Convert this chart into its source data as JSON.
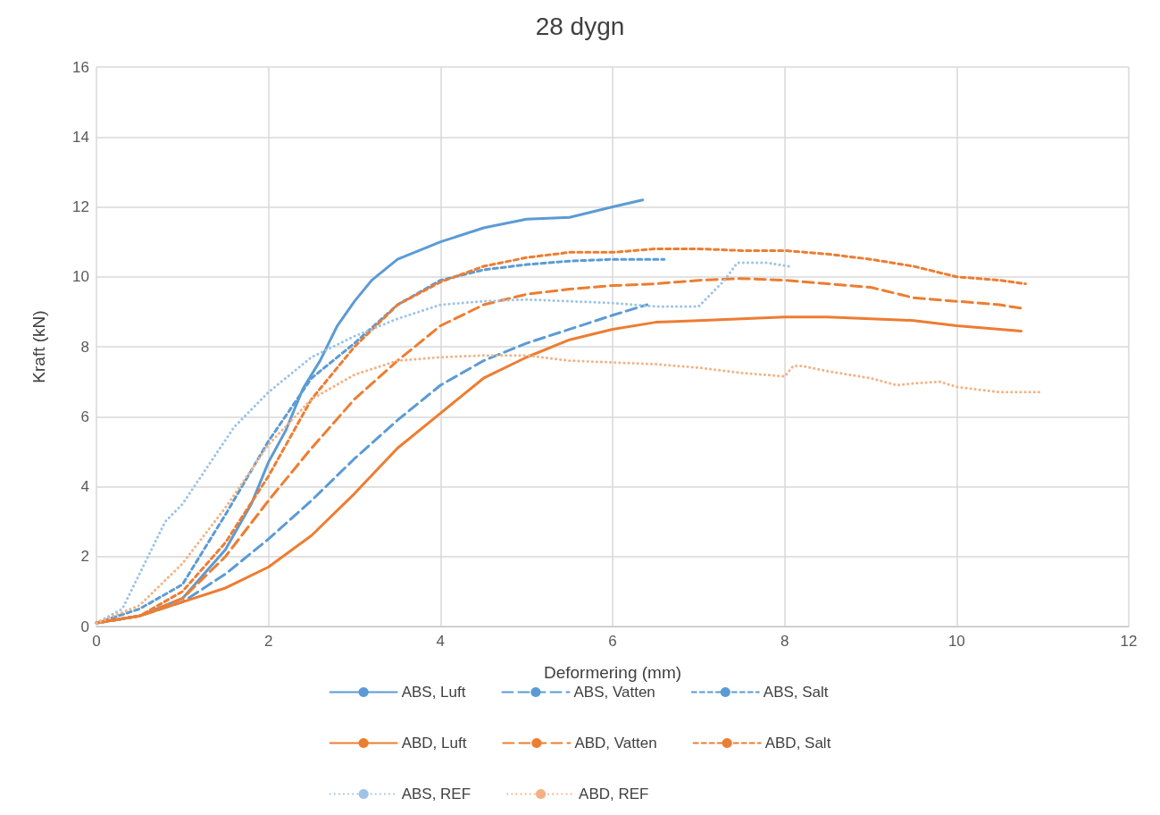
{
  "chart_data": {
    "type": "line",
    "title": "28 dygn",
    "xlabel": "Deformering (mm)",
    "ylabel": "Kraft (kN)",
    "xlim": [
      0,
      12
    ],
    "xticks": [
      0,
      2,
      4,
      6,
      8,
      10,
      12
    ],
    "ylim": [
      0,
      16
    ],
    "yticks": [
      0,
      2,
      4,
      6,
      8,
      10,
      12,
      14,
      16
    ],
    "grid": true,
    "legend": "bottom",
    "marker": "none",
    "series": [
      {
        "name": "ABS, Luft",
        "color": "#5b9bd5",
        "line_style": "solid",
        "x": [
          0,
          0.5,
          1,
          1.5,
          1.8,
          2,
          2.2,
          2.4,
          2.6,
          2.8,
          3,
          3.2,
          3.5,
          4,
          4.5,
          5,
          5.5,
          6,
          6.35
        ],
        "values": [
          0.1,
          0.3,
          0.8,
          2.2,
          3.5,
          4.7,
          5.6,
          6.8,
          7.6,
          8.6,
          9.3,
          9.9,
          10.5,
          11,
          11.4,
          11.65,
          11.7,
          12,
          12.2
        ]
      },
      {
        "name": "ABS, Vatten",
        "color": "#5b9bd5",
        "line_style": "long_dashed",
        "x": [
          0,
          0.5,
          1,
          1.5,
          2,
          2.5,
          3,
          3.5,
          4,
          4.5,
          5,
          5.5,
          6,
          6.4
        ],
        "values": [
          0.1,
          0.3,
          0.7,
          1.5,
          2.5,
          3.6,
          4.8,
          5.9,
          6.9,
          7.6,
          8.1,
          8.5,
          8.9,
          9.2
        ]
      },
      {
        "name": "ABS, Salt",
        "color": "#5b9bd5",
        "line_style": "dashed",
        "x": [
          0,
          0.5,
          1,
          1.5,
          2,
          2.5,
          3,
          3.5,
          4,
          4.5,
          5,
          5.5,
          6,
          6.6
        ],
        "values": [
          0.1,
          0.5,
          1.2,
          3.2,
          5.3,
          7.1,
          8.1,
          9.2,
          9.9,
          10.2,
          10.35,
          10.45,
          10.5,
          10.5
        ]
      },
      {
        "name": "ABD, Luft",
        "color": "#ed7d31",
        "line_style": "solid",
        "x": [
          0,
          0.5,
          1,
          1.5,
          2,
          2.5,
          3,
          3.5,
          4,
          4.5,
          5,
          5.5,
          6,
          6.5,
          7,
          7.5,
          8,
          8.5,
          9,
          9.5,
          10,
          10.5,
          10.75
        ],
        "values": [
          0.1,
          0.3,
          0.7,
          1.1,
          1.7,
          2.6,
          3.8,
          5.1,
          6.1,
          7.1,
          7.7,
          8.2,
          8.5,
          8.7,
          8.75,
          8.8,
          8.85,
          8.85,
          8.8,
          8.75,
          8.6,
          8.5,
          8.45
        ]
      },
      {
        "name": "ABD, Vatten",
        "color": "#ed7d31",
        "line_style": "long_dashed",
        "x": [
          0,
          0.5,
          1,
          1.5,
          2,
          2.5,
          3,
          3.5,
          4,
          4.5,
          5,
          5.5,
          6,
          6.5,
          7,
          7.5,
          8,
          8.5,
          9,
          9.5,
          10,
          10.5,
          10.75
        ],
        "values": [
          0.1,
          0.3,
          0.8,
          2,
          3.6,
          5.1,
          6.5,
          7.6,
          8.6,
          9.2,
          9.5,
          9.65,
          9.75,
          9.8,
          9.9,
          9.95,
          9.9,
          9.8,
          9.7,
          9.4,
          9.3,
          9.2,
          9.1
        ]
      },
      {
        "name": "ABD, Salt",
        "color": "#ed7d31",
        "line_style": "dashed",
        "x": [
          0,
          0.5,
          1,
          1.5,
          2,
          2.5,
          3,
          3.5,
          4,
          4.5,
          5,
          5.5,
          6,
          6.5,
          7,
          7.5,
          8,
          8.5,
          9,
          9.5,
          10,
          10.5,
          10.8
        ],
        "values": [
          0.1,
          0.3,
          1,
          2.4,
          4.3,
          6.5,
          8,
          9.2,
          9.85,
          10.3,
          10.55,
          10.7,
          10.7,
          10.8,
          10.8,
          10.75,
          10.75,
          10.65,
          10.5,
          10.3,
          10,
          9.9,
          9.8
        ]
      },
      {
        "name": "ABS, REF",
        "color": "#9dc3e6",
        "line_style": "dotted",
        "x": [
          0,
          0.3,
          0.5,
          0.8,
          1,
          1.3,
          1.6,
          2,
          2.5,
          3,
          3.5,
          4,
          4.5,
          5,
          5.5,
          6,
          6.5,
          7,
          7.3,
          7.45,
          7.8,
          8.05
        ],
        "values": [
          0.1,
          0.5,
          1.5,
          3,
          3.5,
          4.6,
          5.7,
          6.7,
          7.7,
          8.3,
          8.8,
          9.2,
          9.3,
          9.35,
          9.3,
          9.25,
          9.15,
          9.15,
          9.9,
          10.4,
          10.4,
          10.3
        ]
      },
      {
        "name": "ABD, REF",
        "color": "#f4b183",
        "line_style": "dotted",
        "x": [
          0,
          0.5,
          1,
          1.5,
          2,
          2.5,
          3,
          3.5,
          4,
          4.5,
          5,
          5.5,
          6,
          6.5,
          7,
          7.5,
          8,
          8.1,
          8.2,
          8.5,
          9,
          9.3,
          9.5,
          9.8,
          10,
          10.5,
          11
        ],
        "values": [
          0.1,
          0.6,
          1.8,
          3.4,
          5.2,
          6.5,
          7.2,
          7.6,
          7.7,
          7.75,
          7.75,
          7.6,
          7.55,
          7.5,
          7.4,
          7.25,
          7.15,
          7.45,
          7.45,
          7.3,
          7.1,
          6.9,
          6.95,
          7,
          6.85,
          6.7,
          6.7
        ]
      }
    ]
  }
}
